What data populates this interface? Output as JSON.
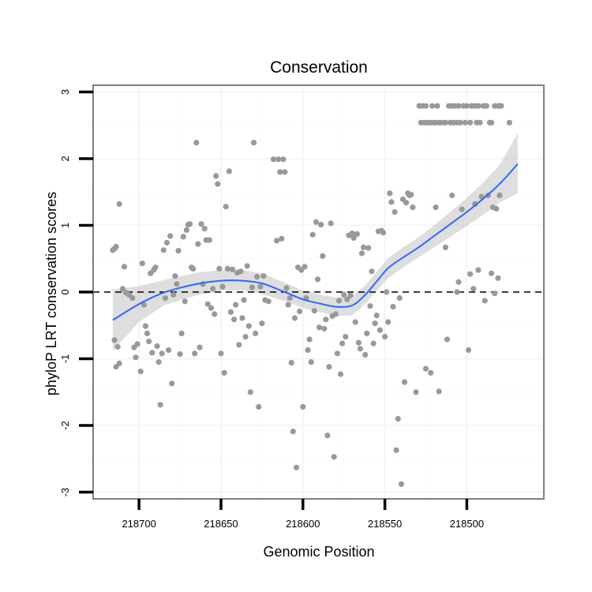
{
  "chart_data": {
    "type": "scatter",
    "title": "Conservation",
    "xlabel": "Genomic Position",
    "ylabel": "phyloP LRT conservation scores",
    "x_reversed": true,
    "xlim": [
      218728,
      218453
    ],
    "ylim": [
      -3.1,
      3.1
    ],
    "x_ticks": [
      218700,
      218650,
      218600,
      218550,
      218500
    ],
    "x_tick_labels": [
      "218700",
      "218650",
      "218600",
      "218550",
      "218500"
    ],
    "y_ticks": [
      -3,
      -2,
      -1,
      0,
      1,
      2,
      3
    ],
    "y_tick_labels": [
      "-3",
      "-2",
      "-1",
      "0",
      "1",
      "2",
      "3"
    ],
    "grid": true,
    "reference_line": {
      "y": 0,
      "style": "dashed"
    },
    "colors": {
      "points": "#999999",
      "smooth": "#3366ff",
      "band": "#bdbdbd",
      "panel_border": "#7f7f7f"
    },
    "smooth": {
      "x": [
        218716,
        218700,
        218685,
        218665,
        218650,
        218637,
        218625,
        218612,
        218600,
        218590,
        218580,
        218570,
        218562,
        218555,
        218548,
        218540,
        218530,
        218520,
        218510,
        218500,
        218490,
        218480,
        218469
      ],
      "y": [
        -0.42,
        -0.18,
        -0.01,
        0.12,
        0.17,
        0.17,
        0.13,
        0.01,
        -0.11,
        -0.17,
        -0.22,
        -0.2,
        -0.04,
        0.16,
        0.36,
        0.5,
        0.66,
        0.84,
        1.02,
        1.2,
        1.4,
        1.62,
        1.92
      ],
      "lower": [
        -0.88,
        -0.45,
        -0.2,
        -0.05,
        0.02,
        0.03,
        -0.03,
        -0.13,
        -0.24,
        -0.3,
        -0.36,
        -0.35,
        -0.18,
        0.02,
        0.21,
        0.35,
        0.51,
        0.67,
        0.83,
        0.99,
        1.16,
        1.34,
        1.48
      ],
      "upper": [
        0.04,
        0.09,
        0.18,
        0.29,
        0.33,
        0.33,
        0.28,
        0.15,
        0.02,
        -0.04,
        -0.08,
        -0.06,
        0.1,
        0.3,
        0.51,
        0.65,
        0.81,
        1.0,
        1.2,
        1.41,
        1.64,
        1.9,
        2.38
      ]
    },
    "points": [
      {
        "x": 218716,
        "y": 0.63
      },
      {
        "x": 218715,
        "y": 0.65
      },
      {
        "x": 218714,
        "y": 0.68
      },
      {
        "x": 218712,
        "y": 1.32
      },
      {
        "x": 218713,
        "y": -0.82
      },
      {
        "x": 218715,
        "y": -0.72
      },
      {
        "x": 218714,
        "y": -1.12
      },
      {
        "x": 218712,
        "y": -1.07
      },
      {
        "x": 218710,
        "y": 0.05
      },
      {
        "x": 218709,
        "y": 0.38
      },
      {
        "x": 218708,
        "y": -0.01
      },
      {
        "x": 218706,
        "y": -0.04
      },
      {
        "x": 218704,
        "y": -0.09
      },
      {
        "x": 218703,
        "y": -0.83
      },
      {
        "x": 218702,
        "y": -0.98
      },
      {
        "x": 218701,
        "y": -0.78
      },
      {
        "x": 218699,
        "y": -1.19
      },
      {
        "x": 218698,
        "y": 0.43
      },
      {
        "x": 218697,
        "y": -0.19
      },
      {
        "x": 218696,
        "y": -0.51
      },
      {
        "x": 218695,
        "y": -0.62
      },
      {
        "x": 218694,
        "y": -0.74
      },
      {
        "x": 218693,
        "y": 0.28
      },
      {
        "x": 218692,
        "y": -0.91
      },
      {
        "x": 218691,
        "y": 0.33
      },
      {
        "x": 218690,
        "y": 0.37
      },
      {
        "x": 218689,
        "y": -0.81
      },
      {
        "x": 218688,
        "y": -1.05
      },
      {
        "x": 218687,
        "y": -1.69
      },
      {
        "x": 218686,
        "y": -0.92
      },
      {
        "x": 218685,
        "y": 0.63
      },
      {
        "x": 218684,
        "y": -0.09
      },
      {
        "x": 218683,
        "y": 0.74
      },
      {
        "x": 218682,
        "y": -0.87
      },
      {
        "x": 218681,
        "y": 0.84
      },
      {
        "x": 218680,
        "y": -1.37
      },
      {
        "x": 218679,
        "y": -0.04
      },
      {
        "x": 218678,
        "y": 0.24
      },
      {
        "x": 218677,
        "y": 0.12
      },
      {
        "x": 218676,
        "y": 0.62
      },
      {
        "x": 218675,
        "y": -0.93
      },
      {
        "x": 218674,
        "y": -0.62
      },
      {
        "x": 218673,
        "y": 0.83
      },
      {
        "x": 218672,
        "y": -0.14
      },
      {
        "x": 218671,
        "y": 0.93
      },
      {
        "x": 218670,
        "y": 1.01
      },
      {
        "x": 218669,
        "y": 1.02
      },
      {
        "x": 218668,
        "y": 0.37
      },
      {
        "x": 218667,
        "y": 0.35
      },
      {
        "x": 218666,
        "y": -0.92
      },
      {
        "x": 218665,
        "y": 2.24
      },
      {
        "x": 218664,
        "y": 0.72
      },
      {
        "x": 218663,
        "y": -0.83
      },
      {
        "x": 218662,
        "y": 1.02
      },
      {
        "x": 218661,
        "y": 0.12
      },
      {
        "x": 218660,
        "y": 0.95
      },
      {
        "x": 218659,
        "y": 0.78
      },
      {
        "x": 218658,
        "y": -0.18
      },
      {
        "x": 218657,
        "y": 0.78
      },
      {
        "x": 218656,
        "y": -0.24
      },
      {
        "x": 218655,
        "y": 0.05
      },
      {
        "x": 218654,
        "y": -0.33
      },
      {
        "x": 218653,
        "y": 1.74
      },
      {
        "x": 218652,
        "y": 1.62
      },
      {
        "x": 218651,
        "y": 0.35
      },
      {
        "x": 218650,
        "y": -0.92
      },
      {
        "x": 218649,
        "y": 0.08
      },
      {
        "x": 218648,
        "y": -1.21
      },
      {
        "x": 218647,
        "y": 1.28
      },
      {
        "x": 218646,
        "y": 0.35
      },
      {
        "x": 218645,
        "y": 1.81
      },
      {
        "x": 218644,
        "y": -0.3
      },
      {
        "x": 218643,
        "y": 0.34
      },
      {
        "x": 218642,
        "y": -0.41
      },
      {
        "x": 218641,
        "y": -0.19
      },
      {
        "x": 218640,
        "y": 0.29
      },
      {
        "x": 218639,
        "y": -0.79
      },
      {
        "x": 218638,
        "y": 0.31
      },
      {
        "x": 218637,
        "y": -0.39
      },
      {
        "x": 218636,
        "y": -0.12
      },
      {
        "x": 218635,
        "y": -0.67
      },
      {
        "x": 218634,
        "y": 0.39
      },
      {
        "x": 218633,
        "y": -0.51
      },
      {
        "x": 218632,
        "y": -1.5
      },
      {
        "x": 218631,
        "y": 0.07
      },
      {
        "x": 218630,
        "y": 2.24
      },
      {
        "x": 218629,
        "y": -0.62
      },
      {
        "x": 218628,
        "y": 0.23
      },
      {
        "x": 218627,
        "y": -1.72
      },
      {
        "x": 218626,
        "y": 0.08
      },
      {
        "x": 218625,
        "y": -0.47
      },
      {
        "x": 218624,
        "y": 0.24
      },
      {
        "x": 218623,
        "y": -0.12
      },
      {
        "x": 218621,
        "y": -0.14
      },
      {
        "x": 218618,
        "y": 1.99
      },
      {
        "x": 218616,
        "y": 0.77
      },
      {
        "x": 218615,
        "y": 1.99
      },
      {
        "x": 218614,
        "y": 1.8
      },
      {
        "x": 218613,
        "y": 0.8
      },
      {
        "x": 218612,
        "y": 1.99
      },
      {
        "x": 218611,
        "y": 1.8
      },
      {
        "x": 218610,
        "y": 0.06
      },
      {
        "x": 218609,
        "y": -0.19
      },
      {
        "x": 218608,
        "y": -0.09
      },
      {
        "x": 218607,
        "y": -1.06
      },
      {
        "x": 218606,
        "y": -2.09
      },
      {
        "x": 218605,
        "y": -0.39
      },
      {
        "x": 218604,
        "y": -2.63
      },
      {
        "x": 218603,
        "y": 0.37
      },
      {
        "x": 218602,
        "y": -0.29
      },
      {
        "x": 218601,
        "y": 0.33
      },
      {
        "x": 218600,
        "y": -1.72
      },
      {
        "x": 218599,
        "y": 0.38
      },
      {
        "x": 218598,
        "y": -0.09
      },
      {
        "x": 218597,
        "y": -0.87
      },
      {
        "x": 218596,
        "y": -0.71
      },
      {
        "x": 218595,
        "y": -1.05
      },
      {
        "x": 218594,
        "y": 0.86
      },
      {
        "x": 218593,
        "y": -0.28
      },
      {
        "x": 218592,
        "y": 1.05
      },
      {
        "x": 218591,
        "y": 0.19
      },
      {
        "x": 218590,
        "y": -0.53
      },
      {
        "x": 218589,
        "y": 1.01
      },
      {
        "x": 218588,
        "y": 0.54
      },
      {
        "x": 218587,
        "y": -0.55
      },
      {
        "x": 218586,
        "y": -0.41
      },
      {
        "x": 218585,
        "y": -2.15
      },
      {
        "x": 218584,
        "y": -1.12
      },
      {
        "x": 218583,
        "y": 1.03
      },
      {
        "x": 218582,
        "y": -0.36
      },
      {
        "x": 218581,
        "y": -2.47
      },
      {
        "x": 218580,
        "y": -0.33
      },
      {
        "x": 218579,
        "y": -0.92
      },
      {
        "x": 218578,
        "y": -0.13
      },
      {
        "x": 218577,
        "y": -1.23
      },
      {
        "x": 218576,
        "y": -0.77
      },
      {
        "x": 218575,
        "y": -0.04
      },
      {
        "x": 218574,
        "y": -0.67
      },
      {
        "x": 218573,
        "y": -0.11
      },
      {
        "x": 218572,
        "y": 0.85
      },
      {
        "x": 218571,
        "y": -0.05
      },
      {
        "x": 218570,
        "y": 0.88
      },
      {
        "x": 218569,
        "y": 0.81
      },
      {
        "x": 218568,
        "y": -0.45
      },
      {
        "x": 218567,
        "y": 0.87
      },
      {
        "x": 218566,
        "y": -0.76
      },
      {
        "x": 218565,
        "y": -0.85
      },
      {
        "x": 218564,
        "y": 0.58
      },
      {
        "x": 218563,
        "y": 0.67
      },
      {
        "x": 218562,
        "y": -0.94
      },
      {
        "x": 218561,
        "y": -0.62
      },
      {
        "x": 218560,
        "y": 0.66
      },
      {
        "x": 218559,
        "y": -0.21
      },
      {
        "x": 218558,
        "y": 0.31
      },
      {
        "x": 218557,
        "y": -0.77
      },
      {
        "x": 218556,
        "y": -0.47
      },
      {
        "x": 218555,
        "y": -0.35
      },
      {
        "x": 218554,
        "y": 0.91
      },
      {
        "x": 218553,
        "y": -0.57
      },
      {
        "x": 218552,
        "y": 0.92
      },
      {
        "x": 218551,
        "y": 0.89
      },
      {
        "x": 218550,
        "y": -0.67
      },
      {
        "x": 218549,
        "y": 0.0
      },
      {
        "x": 218548,
        "y": -0.45
      },
      {
        "x": 218547,
        "y": 1.48
      },
      {
        "x": 218546,
        "y": 1.35
      },
      {
        "x": 218545,
        "y": -0.22
      },
      {
        "x": 218544,
        "y": 1.2
      },
      {
        "x": 218543,
        "y": -2.37
      },
      {
        "x": 218542,
        "y": -1.9
      },
      {
        "x": 218541,
        "y": -0.09
      },
      {
        "x": 218540,
        "y": -2.88
      },
      {
        "x": 218539,
        "y": 1.39
      },
      {
        "x": 218538,
        "y": -1.35
      },
      {
        "x": 218537,
        "y": 1.34
      },
      {
        "x": 218536,
        "y": 1.48
      },
      {
        "x": 218535,
        "y": 1.45
      },
      {
        "x": 218534,
        "y": 1.46
      },
      {
        "x": 218533,
        "y": 1.27
      },
      {
        "x": 218531,
        "y": -1.5
      },
      {
        "x": 218529,
        "y": 2.79
      },
      {
        "x": 218528,
        "y": 2.54
      },
      {
        "x": 218527,
        "y": 2.79
      },
      {
        "x": 218526,
        "y": 2.54
      },
      {
        "x": 218525,
        "y": 2.79
      },
      {
        "x": 218524,
        "y": 2.54
      },
      {
        "x": 218523,
        "y": 2.54
      },
      {
        "x": 218522,
        "y": 2.54
      },
      {
        "x": 218521,
        "y": 2.79
      },
      {
        "x": 218520,
        "y": 2.54
      },
      {
        "x": 218519,
        "y": 2.54
      },
      {
        "x": 218518,
        "y": 2.79
      },
      {
        "x": 218517,
        "y": 2.54
      },
      {
        "x": 218516,
        "y": 2.54
      },
      {
        "x": 218514,
        "y": 2.54
      },
      {
        "x": 218513,
        "y": 2.54
      },
      {
        "x": 218511,
        "y": 2.79
      },
      {
        "x": 218510,
        "y": 2.54
      },
      {
        "x": 218509,
        "y": 2.79
      },
      {
        "x": 218508,
        "y": 2.54
      },
      {
        "x": 218507,
        "y": 2.79
      },
      {
        "x": 218506,
        "y": 2.54
      },
      {
        "x": 218505,
        "y": 2.79
      },
      {
        "x": 218504,
        "y": 2.54
      },
      {
        "x": 218502,
        "y": 2.79
      },
      {
        "x": 218501,
        "y": 2.54
      },
      {
        "x": 218500,
        "y": 2.79
      },
      {
        "x": 218498,
        "y": 2.54
      },
      {
        "x": 218497,
        "y": 2.79
      },
      {
        "x": 218495,
        "y": 2.79
      },
      {
        "x": 218494,
        "y": 2.54
      },
      {
        "x": 218493,
        "y": 2.79
      },
      {
        "x": 218492,
        "y": 2.54
      },
      {
        "x": 218490,
        "y": 2.79
      },
      {
        "x": 218489,
        "y": 2.79
      },
      {
        "x": 218488,
        "y": 2.79
      },
      {
        "x": 218486,
        "y": 2.54
      },
      {
        "x": 218485,
        "y": 2.54
      },
      {
        "x": 218483,
        "y": 2.79
      },
      {
        "x": 218481,
        "y": 2.79
      },
      {
        "x": 218480,
        "y": 2.79
      },
      {
        "x": 218479,
        "y": 2.79
      },
      {
        "x": 218474,
        "y": 2.54
      },
      {
        "x": 218525,
        "y": -1.15
      },
      {
        "x": 218522,
        "y": -1.21
      },
      {
        "x": 218519,
        "y": 1.27
      },
      {
        "x": 218517,
        "y": -1.49
      },
      {
        "x": 218513,
        "y": 0.67
      },
      {
        "x": 218512,
        "y": -0.71
      },
      {
        "x": 218509,
        "y": 1.45
      },
      {
        "x": 218506,
        "y": 0.0
      },
      {
        "x": 218505,
        "y": 0.15
      },
      {
        "x": 218503,
        "y": 1.24
      },
      {
        "x": 218499,
        "y": -0.87
      },
      {
        "x": 218498,
        "y": 0.27
      },
      {
        "x": 218496,
        "y": 0.05
      },
      {
        "x": 218495,
        "y": 1.32
      },
      {
        "x": 218493,
        "y": 0.33
      },
      {
        "x": 218491,
        "y": 1.43
      },
      {
        "x": 218489,
        "y": -0.13
      },
      {
        "x": 218487,
        "y": 1.45
      },
      {
        "x": 218485,
        "y": 0.28
      },
      {
        "x": 218484,
        "y": 1.27
      },
      {
        "x": 218483,
        "y": -0.02
      },
      {
        "x": 218482,
        "y": 1.25
      },
      {
        "x": 218481,
        "y": 0.21
      },
      {
        "x": 218480,
        "y": 1.45
      }
    ]
  }
}
